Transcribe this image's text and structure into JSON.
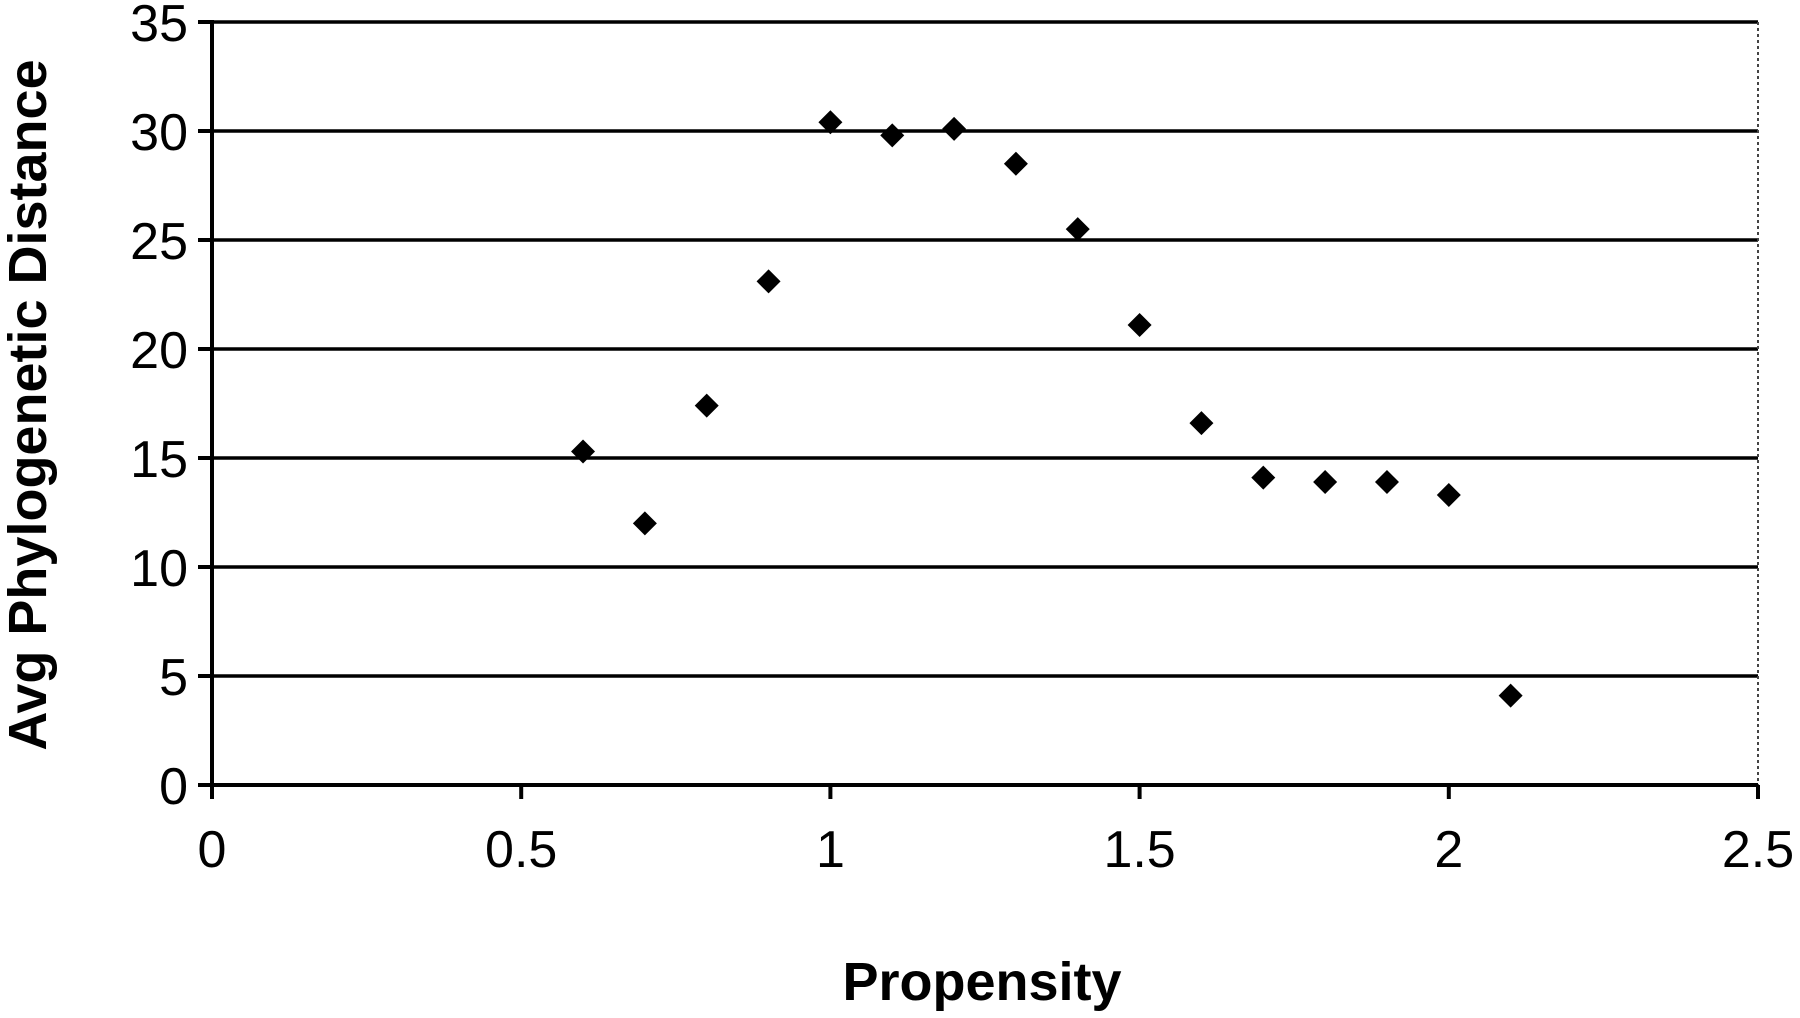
{
  "chart_data": {
    "type": "scatter",
    "title": "",
    "xlabel": "Propensity",
    "ylabel": "Avg Phylogenetic Distance",
    "xlim": [
      0,
      2.5
    ],
    "ylim": [
      0,
      35
    ],
    "x_ticks": [
      0,
      0.5,
      1,
      1.5,
      2,
      2.5
    ],
    "x_tick_labels": [
      "0",
      "0.5",
      "1",
      "1.5",
      "2",
      "2.5"
    ],
    "y_ticks": [
      0,
      5,
      10,
      15,
      20,
      25,
      30,
      35
    ],
    "y_tick_labels": [
      "0",
      "5",
      "10",
      "15",
      "20",
      "25",
      "30",
      "35"
    ],
    "grid": "horizontal",
    "legend": "none",
    "marker": "diamond",
    "marker_color": "#000000",
    "series": [
      {
        "x": [
          0.6,
          0.7,
          0.8,
          0.9,
          1.0,
          1.1,
          1.2,
          1.3,
          1.4,
          1.5,
          1.6,
          1.7,
          1.8,
          1.9,
          2.0,
          2.1
        ],
        "y": [
          15.3,
          12.0,
          17.4,
          23.1,
          30.4,
          29.8,
          30.1,
          28.5,
          25.5,
          21.1,
          16.6,
          14.1,
          13.9,
          13.9,
          13.3,
          4.1
        ]
      }
    ]
  }
}
